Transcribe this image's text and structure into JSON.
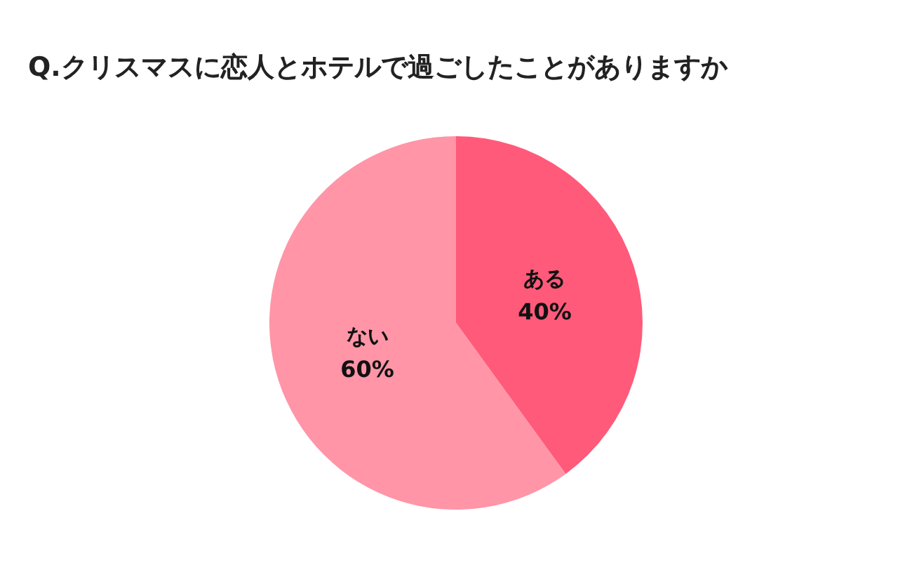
{
  "chart_data": {
    "type": "pie",
    "title": "Q.クリスマスに恋人とホテルで過ごしたことがありますか",
    "categories": [
      "ある",
      "ない"
    ],
    "values": [
      40,
      60
    ],
    "colors": [
      "#ff5a7a",
      "#ff95a7"
    ],
    "value_labels": [
      "40%",
      "60%"
    ]
  }
}
